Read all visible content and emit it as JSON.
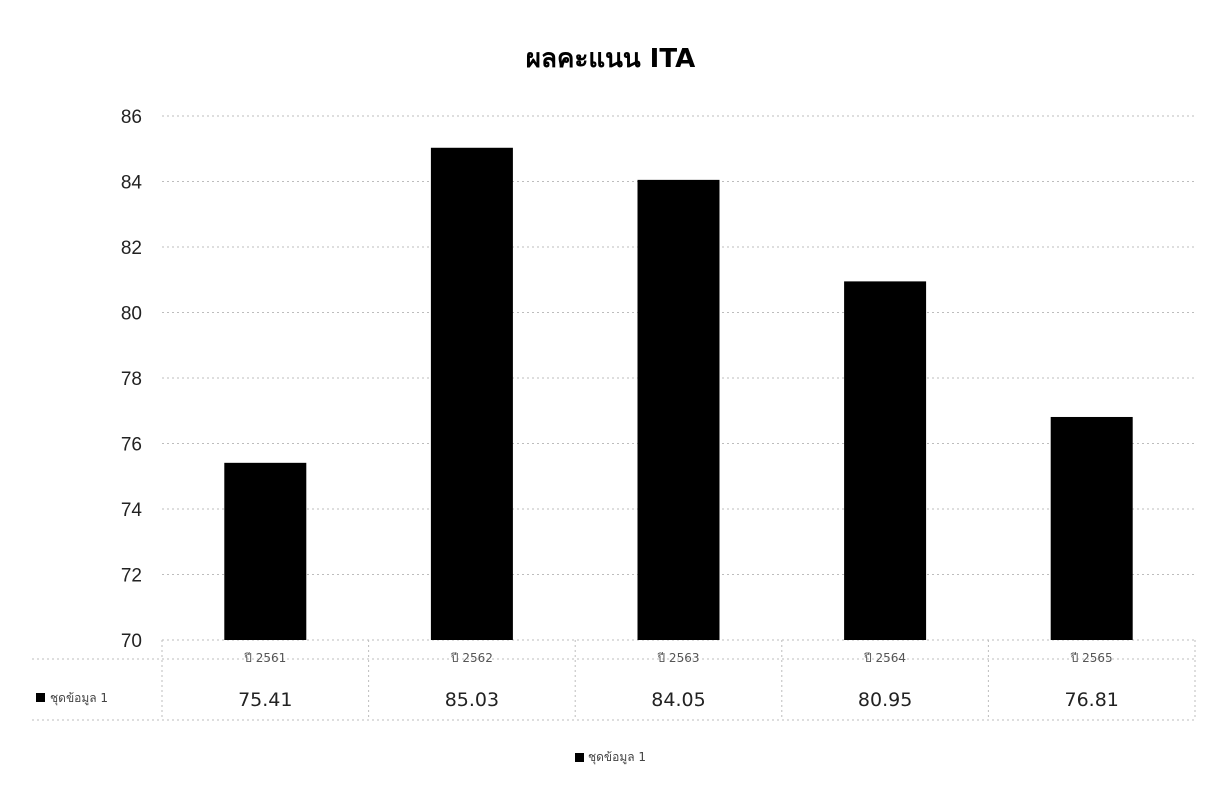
{
  "chart_data": {
    "type": "bar",
    "title": "ผลคะแนน ITA",
    "categories": [
      "ปี 2561",
      "ปี 2562",
      "ปี 2563",
      "ปี 2564",
      "ปี 2565"
    ],
    "series": [
      {
        "name": "ชุดข้อมูล 1",
        "values": [
          75.41,
          85.03,
          84.05,
          80.95,
          76.81
        ],
        "value_labels": [
          "75.41",
          "85.03",
          "84.05",
          "80.95",
          "76.81"
        ]
      }
    ],
    "y_ticks": [
      "86",
      "84",
      "82",
      "80",
      "78",
      "76",
      "74",
      "72",
      "70"
    ],
    "ylim": [
      70,
      86
    ],
    "xlabel": "",
    "ylabel": "",
    "grid": true,
    "legend": "bottom",
    "data_table": true,
    "bar_color": "#000000",
    "grid_color": "#bdbdbd"
  }
}
